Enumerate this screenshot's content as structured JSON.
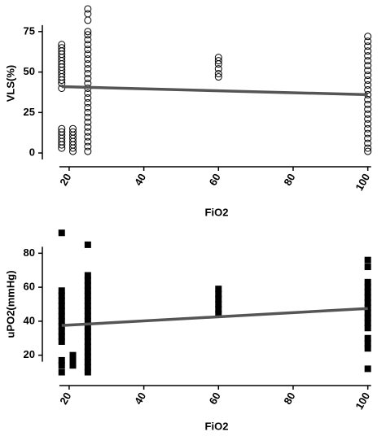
{
  "chart_data": [
    {
      "type": "scatter",
      "ylabel": "VLS(%)",
      "xlabel": "FiO2",
      "marker": "circle",
      "color": "#000000",
      "xlim": [
        15,
        104
      ],
      "xticks": [
        20,
        40,
        60,
        80,
        100
      ],
      "ylim": [
        -6,
        92
      ],
      "yticks": [
        0,
        25,
        50,
        75
      ],
      "series": [
        {
          "x": 18,
          "values": [
            67,
            65,
            63,
            61,
            59,
            57,
            55,
            53,
            51,
            49,
            47,
            45,
            43,
            40,
            15,
            13,
            11,
            9,
            7,
            5,
            3
          ]
        },
        {
          "x": 21,
          "values": [
            15,
            13,
            11,
            9,
            7,
            5,
            3,
            1
          ]
        },
        {
          "x": 25,
          "values": [
            89,
            86,
            82,
            75,
            73,
            70,
            67,
            64,
            61,
            58,
            55,
            52,
            49,
            46,
            43,
            40,
            37,
            34,
            31,
            28,
            25,
            22,
            19,
            16,
            13,
            10,
            7,
            4,
            1
          ]
        },
        {
          "x": 60,
          "values": [
            59,
            57,
            55,
            52,
            49,
            47
          ]
        },
        {
          "x": 100,
          "values": [
            72,
            69,
            66,
            63,
            60,
            57,
            54,
            51,
            48,
            45,
            42,
            39,
            36,
            33,
            30,
            27,
            24,
            21,
            18,
            15,
            12,
            9,
            6,
            3,
            1
          ]
        }
      ],
      "trend": {
        "x": [
          18,
          100
        ],
        "values": [
          41,
          36
        ],
        "color": "#555555"
      }
    },
    {
      "type": "scatter",
      "ylabel": "uPO2(mmHg)",
      "xlabel": "FiO2",
      "marker": "square",
      "color": "#000000",
      "xlim": [
        15,
        104
      ],
      "xticks": [
        20,
        40,
        60,
        80,
        100
      ],
      "ylim": [
        5,
        95
      ],
      "yticks": [
        20,
        40,
        60,
        80
      ],
      "series": [
        {
          "x": 18,
          "values": [
            92,
            58,
            55,
            52,
            49,
            46,
            43,
            40,
            37,
            34,
            31,
            28,
            17,
            14,
            10
          ]
        },
        {
          "x": 21,
          "values": [
            20,
            17,
            14
          ]
        },
        {
          "x": 25,
          "values": [
            85,
            67,
            64,
            61,
            58,
            55,
            52,
            49,
            46,
            43,
            40,
            37,
            34,
            31,
            28,
            25,
            22,
            19,
            16,
            13,
            10
          ]
        },
        {
          "x": 60,
          "values": [
            59,
            56,
            53,
            50,
            47,
            44
          ]
        },
        {
          "x": 100,
          "values": [
            76,
            72,
            63,
            60,
            57,
            54,
            51,
            48,
            45,
            42,
            39,
            36,
            30,
            27,
            24,
            12
          ]
        }
      ],
      "trend": {
        "x": [
          18,
          100
        ],
        "values": [
          37.5,
          47.5
        ],
        "color": "#555555"
      }
    }
  ]
}
